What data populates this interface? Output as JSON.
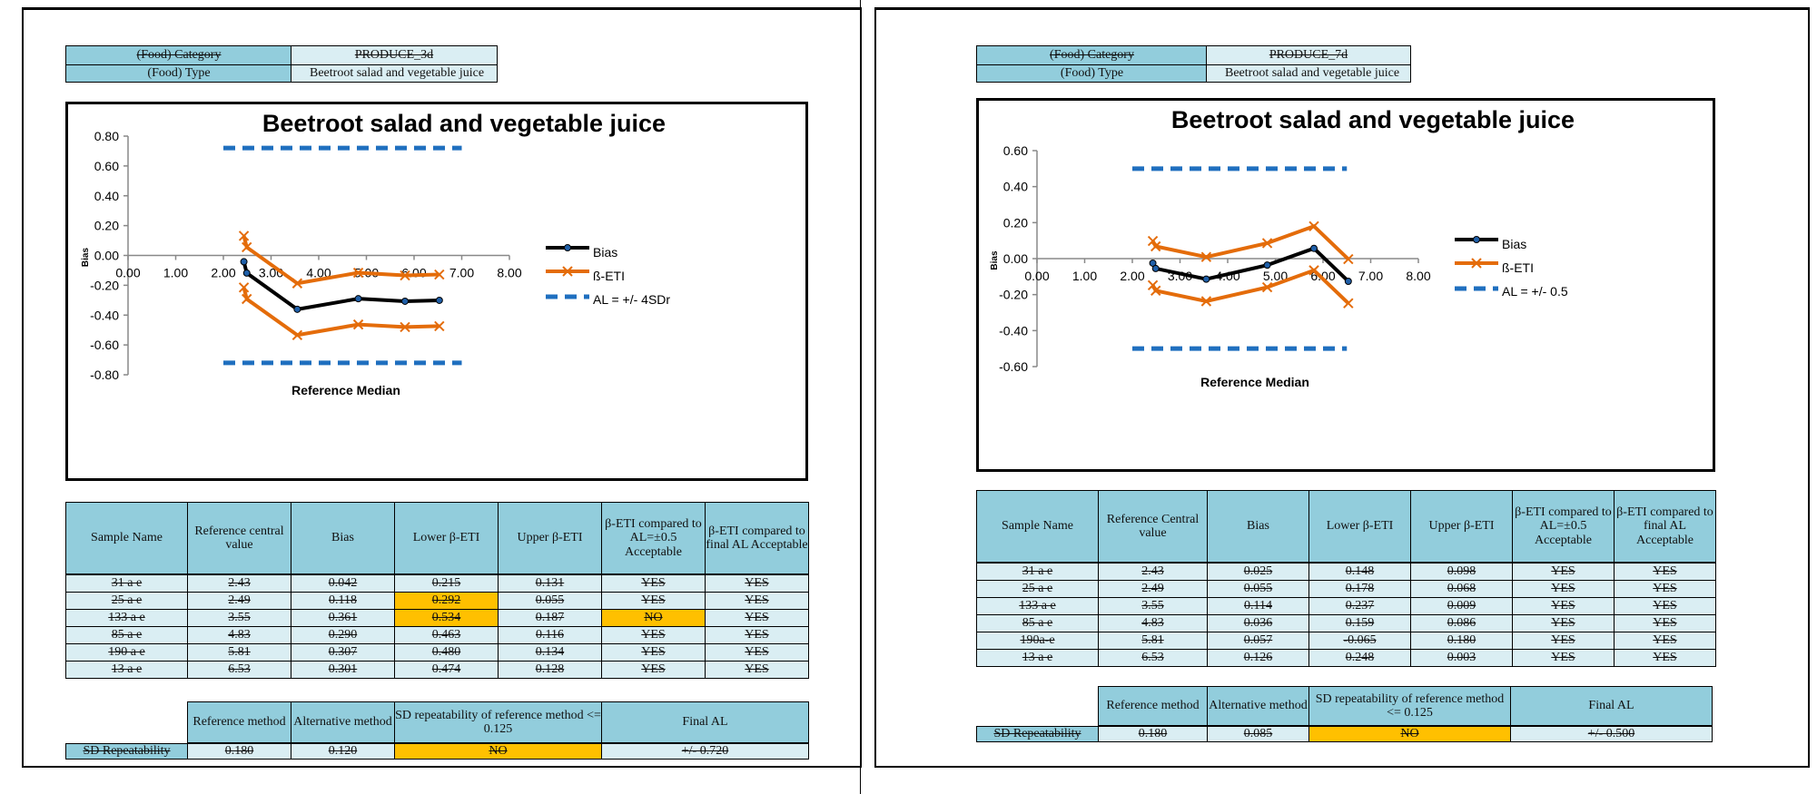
{
  "pages": [
    {
      "category_label": "(Food) Category",
      "category_value": "PRODUCE_3d",
      "type_label": "(Food) Type",
      "type_value": "Beetroot salad and vegetable juice",
      "chart_data": {
        "type": "line",
        "title": "Beetroot salad and vegetable juice",
        "xlabel": "Reference Median",
        "ylabel": "Bias",
        "xlim": [
          0,
          8
        ],
        "ylim": [
          -0.8,
          0.8
        ],
        "x_ticks": [
          "0.00",
          "1.00",
          "2.00",
          "3.00",
          "4.00",
          "5.00",
          "6.00",
          "7.00",
          "8.00"
        ],
        "y_ticks": [
          "0.80",
          "0.60",
          "0.40",
          "0.20",
          "0.00",
          "-0.20",
          "-0.40",
          "-0.60",
          "-0.80"
        ],
        "legend": [
          "Bias",
          "ß-ETI",
          "AL = +/- 4SDr"
        ],
        "x": [
          2.43,
          2.49,
          3.55,
          4.83,
          5.81,
          6.53
        ],
        "series": [
          {
            "name": "Bias",
            "values": [
              -0.042,
              -0.118,
              -0.361,
              -0.29,
              -0.307,
              -0.301
            ],
            "color": "#000000"
          },
          {
            "name": "ß-ETI",
            "values": [
              0.131,
              0.055,
              -0.187,
              -0.116,
              -0.134,
              -0.128
            ],
            "color": "#e46c0a"
          },
          {
            "name": "ß-ETI",
            "values": [
              -0.215,
              -0.292,
              -0.534,
              -0.463,
              -0.48,
              -0.474
            ],
            "color": "#e46c0a"
          }
        ],
        "al_limits": {
          "upper": 0.72,
          "lower": -0.72,
          "x_range": [
            2,
            7
          ],
          "color": "#1f6fbf"
        }
      },
      "table_headers": [
        "Sample Name",
        "Reference central value",
        "Bias",
        "Lower β-ETI",
        "Upper β-ETI",
        "β-ETI compared to AL=±0.5 Acceptable",
        "β-ETI compared to final AL Acceptable"
      ],
      "rows": [
        [
          "31 a e",
          "2.43",
          "0.042",
          "0.215",
          "0.131",
          "YES",
          "YES"
        ],
        [
          "25 a e",
          "2.49",
          "0.118",
          "0.292",
          "0.055",
          "YES",
          "YES"
        ],
        [
          "133 a e",
          "3.55",
          "0.361",
          "0.534",
          "0.187",
          "NO",
          "YES"
        ],
        [
          "85 a e",
          "4.83",
          "0.290",
          "0.463",
          "0.116",
          "YES",
          "YES"
        ],
        [
          "190 a e",
          "5.81",
          "0.307",
          "0.480",
          "0.134",
          "YES",
          "YES"
        ],
        [
          "13 a e",
          "6.53",
          "0.301",
          "0.474",
          "0.128",
          "YES",
          "YES"
        ]
      ],
      "highlight_cells": [
        [
          1,
          3
        ],
        [
          2,
          3
        ],
        [
          2,
          5
        ]
      ],
      "rep_headers": [
        "Reference method",
        "Alternative method",
        "SD repeatability of reference method <= 0.125",
        "Final AL"
      ],
      "rep_row": {
        "label": "SD Repeatability",
        "ref": "0.180",
        "alt": "0.120",
        "check": "NO",
        "final": "+/- 0.720"
      }
    },
    {
      "category_label": "(Food) Category",
      "category_value": "PRODUCE_7d",
      "type_label": "(Food) Type",
      "type_value": "Beetroot salad and vegetable juice",
      "chart_data": {
        "type": "line",
        "title": "Beetroot salad and vegetable juice",
        "xlabel": "Reference Median",
        "ylabel": "Bias",
        "xlim": [
          0,
          8
        ],
        "ylim": [
          -0.6,
          0.6
        ],
        "x_ticks": [
          "0.00",
          "1.00",
          "2.00",
          "3.00",
          "4.00",
          "5.00",
          "6.00",
          "7.00",
          "8.00"
        ],
        "y_ticks": [
          "0.60",
          "0.40",
          "0.20",
          "0.00",
          "-0.20",
          "-0.40",
          "-0.60"
        ],
        "legend": [
          "Bias",
          "ß-ETI",
          "AL = +/- 0.5"
        ],
        "x": [
          2.43,
          2.49,
          3.55,
          4.83,
          5.81,
          6.53
        ],
        "series": [
          {
            "name": "Bias",
            "values": [
              -0.025,
              -0.055,
              -0.114,
              -0.036,
              0.057,
              -0.126
            ],
            "color": "#000000"
          },
          {
            "name": "ß-ETI",
            "values": [
              0.098,
              0.068,
              0.009,
              0.086,
              0.18,
              -0.003
            ],
            "color": "#e46c0a"
          },
          {
            "name": "ß-ETI",
            "values": [
              -0.148,
              -0.178,
              -0.237,
              -0.159,
              -0.065,
              -0.248
            ],
            "color": "#e46c0a"
          }
        ],
        "al_limits": {
          "upper": 0.5,
          "lower": -0.5,
          "x_range": [
            2,
            6.5
          ],
          "color": "#1f6fbf"
        }
      },
      "table_headers": [
        "Sample Name",
        "Reference Central value",
        "Bias",
        "Lower β-ETI",
        "Upper β-ETI",
        "β-ETI compared to AL=±0.5 Acceptable",
        "β-ETI compared to final AL Acceptable"
      ],
      "rows": [
        [
          "31 a e",
          "2.43",
          "0.025",
          "0.148",
          "0.098",
          "YES",
          "YES"
        ],
        [
          "25 a e",
          "2.49",
          "0.055",
          "0.178",
          "0.068",
          "YES",
          "YES"
        ],
        [
          "133 a e",
          "3.55",
          "0.114",
          "0.237",
          "0.009",
          "YES",
          "YES"
        ],
        [
          "85 a e",
          "4.83",
          "0.036",
          "0.159",
          "0.086",
          "YES",
          "YES"
        ],
        [
          "190a-e",
          "5.81",
          "0.057",
          "-0.065",
          "0.180",
          "YES",
          "YES"
        ],
        [
          "13 a e",
          "6.53",
          "0.126",
          "0.248",
          "0.003",
          "YES",
          "YES"
        ]
      ],
      "highlight_cells": [],
      "rep_headers": [
        "Reference method",
        "Alternative method",
        "SD repeatability of reference method <= 0.125",
        "Final AL"
      ],
      "rep_row": {
        "label": "SD Repeatability",
        "ref": "0.180",
        "alt": "0.085",
        "check": "NO",
        "final": "+/- 0.500"
      }
    }
  ]
}
